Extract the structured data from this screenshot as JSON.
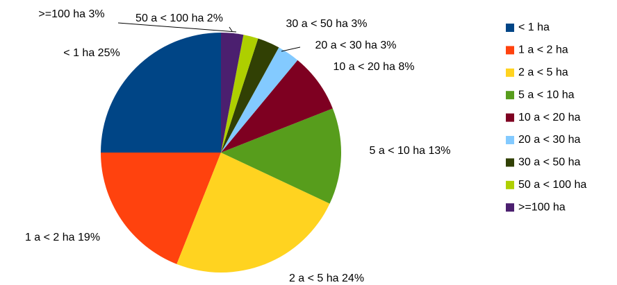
{
  "chart_data": {
    "type": "pie",
    "categories": [
      "< 1 ha",
      "1  a < 2 ha",
      "2 a < 5 ha",
      "5 a <  10 ha",
      "10 a < 20 ha",
      "20 a < 30 ha",
      "30 a < 50 ha",
      "50 a < 100 ha",
      ">=100 ha"
    ],
    "values": [
      25,
      19,
      24,
      13,
      8,
      3,
      3,
      2,
      3
    ],
    "value_labels": [
      "< 1 ha 25%",
      "1  a < 2 ha 19%",
      "2 a < 5 ha 24%",
      "5 a <  10 ha 13%",
      "10 a < 20 ha 8%",
      "20 a < 30 ha 3%",
      "30 a < 50 ha 3%",
      "50 a < 100 ha 2%",
      ">=100 ha 3%"
    ],
    "colors": [
      "#004586",
      "#ff420e",
      "#ffd320",
      "#579d1c",
      "#7e0021",
      "#83caff",
      "#314004",
      "#aecf00",
      "#4b1f6f"
    ],
    "legend": "right"
  }
}
